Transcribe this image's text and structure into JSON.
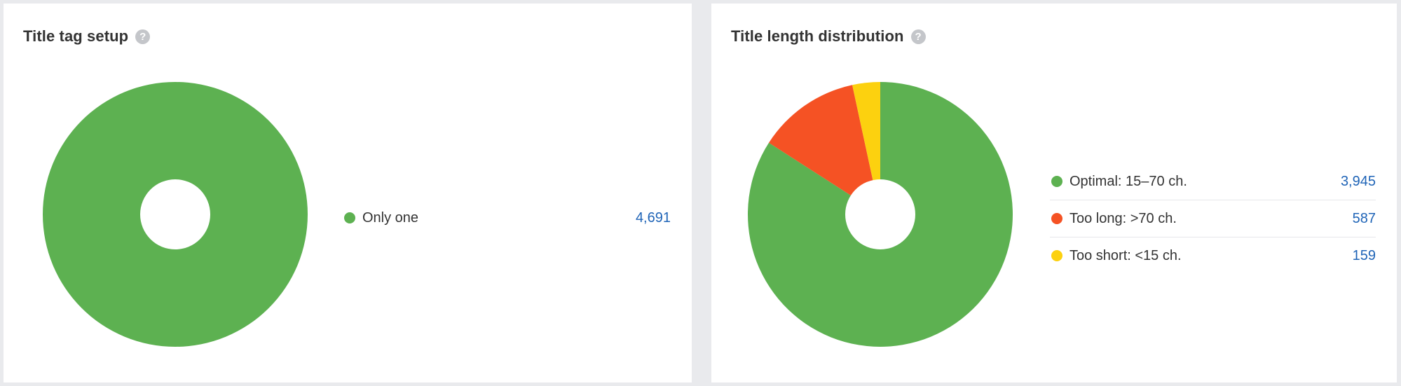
{
  "colors": {
    "green": "#5db151",
    "orange": "#f55224",
    "yellow": "#fcd10f",
    "value_blue": "#1f64b7"
  },
  "help_icon": {
    "glyph": "?",
    "name": "question-circle-icon"
  },
  "title_tag_setup": {
    "title": "Title tag setup",
    "chart_data": {
      "type": "pie",
      "title": "Title tag setup",
      "series": [
        {
          "name": "Only one",
          "value": 4691,
          "display": "4,691",
          "color": "#5db151"
        }
      ]
    }
  },
  "title_length_distribution": {
    "title": "Title length distribution",
    "chart_data": {
      "type": "pie",
      "title": "Title length distribution",
      "series": [
        {
          "name": "Optimal: 15–70 ch.",
          "value": 3945,
          "display": "3,945",
          "color": "#5db151"
        },
        {
          "name": "Too long: >70 ch.",
          "value": 587,
          "display": "587",
          "color": "#f55224"
        },
        {
          "name": "Too short: <15 ch.",
          "value": 159,
          "display": "159",
          "color": "#fcd10f"
        }
      ]
    }
  }
}
